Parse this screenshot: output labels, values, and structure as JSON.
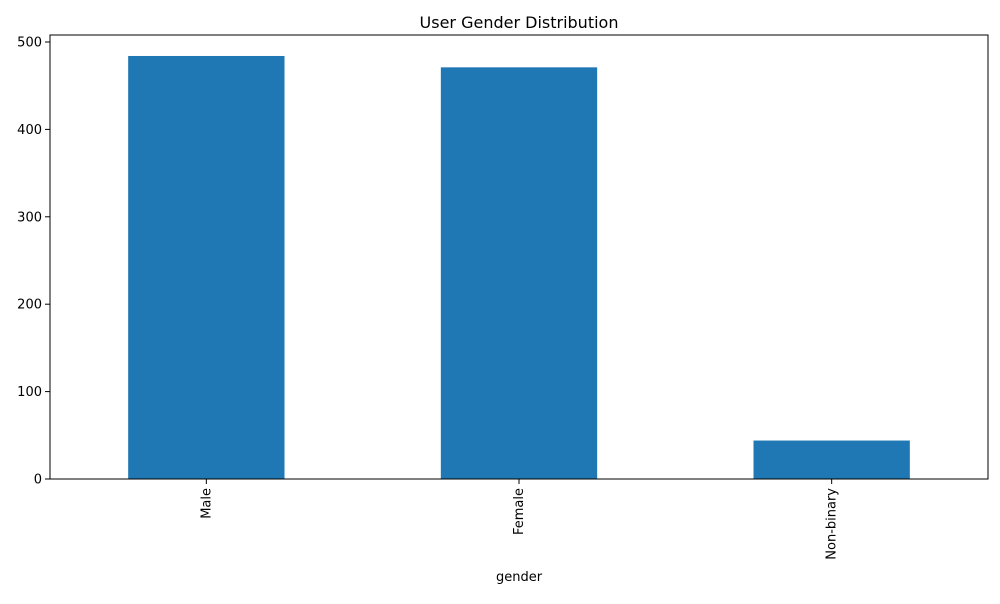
{
  "chart_data": {
    "type": "bar",
    "title": "User Gender Distribution",
    "xlabel": "gender",
    "ylabel": "",
    "categories": [
      "Male",
      "Female",
      "Non-binary"
    ],
    "values": [
      484,
      471,
      44
    ],
    "ylim": [
      0,
      508
    ],
    "yticks": [
      0,
      100,
      200,
      300,
      400,
      500
    ],
    "bar_color": "#1f77b4",
    "grid": false,
    "legend": "none"
  }
}
